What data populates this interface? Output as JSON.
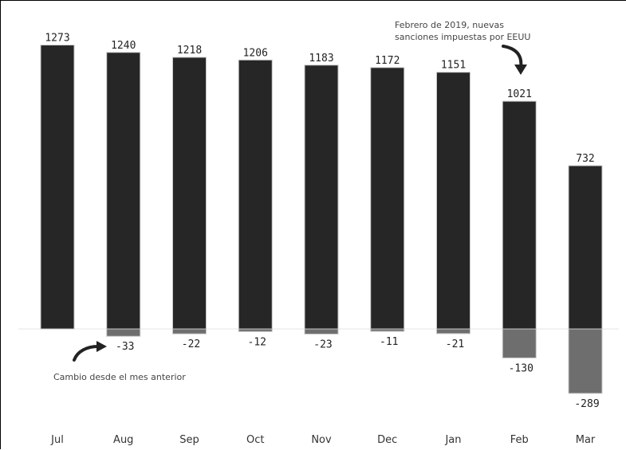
{
  "chart_data": {
    "type": "bar",
    "categories": [
      "Jul",
      "Aug",
      "Sep",
      "Oct",
      "Nov",
      "Dec",
      "Jan",
      "Feb",
      "Mar"
    ],
    "series": [
      {
        "values": [
          1273,
          1240,
          1218,
          1206,
          1183,
          1172,
          1151,
          1021,
          732
        ]
      },
      {
        "values": [
          null,
          -33,
          -22,
          -12,
          -23,
          -11,
          -21,
          -130,
          -289
        ]
      }
    ],
    "value_labels": [
      "1273",
      "1240",
      "1218",
      "1206",
      "1183",
      "1172",
      "1151",
      "1021",
      "732"
    ],
    "change_labels": [
      "",
      "-33",
      "-22",
      "-12",
      "-23",
      "-11",
      "-21",
      "-130",
      "-289"
    ],
    "annotations": {
      "sanctions_line1": "Febrero de 2019, nuevas",
      "sanctions_line2": "sanciones impuestas por EEUU",
      "change_note": "Cambio desde el mes anterior"
    },
    "colors": {
      "level_bar": "#262626",
      "change_bar": "#6e6e6e",
      "bar_edge": "#c8c8c8",
      "baseline": "#e6e6e6"
    },
    "ylim": [
      -300,
      1300
    ],
    "grid": false,
    "legend": "none"
  }
}
